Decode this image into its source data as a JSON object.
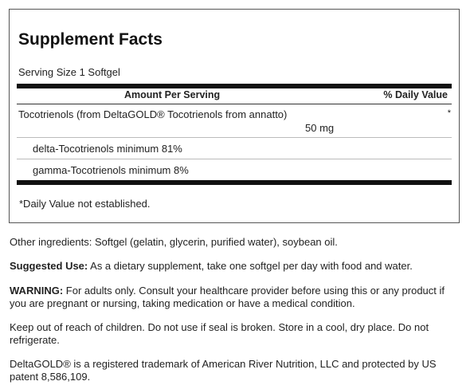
{
  "facts": {
    "title": "Supplement Facts",
    "serving_size": "Serving Size 1 Softgel",
    "header_amount": "Amount Per Serving",
    "header_dv": "% Daily Value",
    "rows": [
      {
        "name": "Tocotrienols (from DeltaGOLD® Tocotrienols from annatto)",
        "amount": "50 mg",
        "dv": "*"
      },
      {
        "name": "delta-Tocotrienols minimum 81%"
      },
      {
        "name": "gamma-Tocotrienols minimum 8%"
      }
    ],
    "footnote": "*Daily Value not established."
  },
  "info": {
    "other_ingredients": "Other ingredients: Softgel (gelatin, glycerin, purified water), soybean oil.",
    "suggested_label": "Suggested Use:",
    "suggested_text": " As a dietary supplement, take one softgel per day with food and water.",
    "warning_label": "WARNING:",
    "warning_text": " For adults only. Consult your healthcare provider before using this or any product if you are pregnant or nursing, taking medication or have a medical condition.",
    "storage": "Keep out of reach of children. Do not use if seal is broken. Store in a cool, dry place. Do not refrigerate.",
    "trademark": "DeltaGOLD® is a registered trademark of American River Nutrition, LLC and protected by US patent 8,586,109."
  }
}
